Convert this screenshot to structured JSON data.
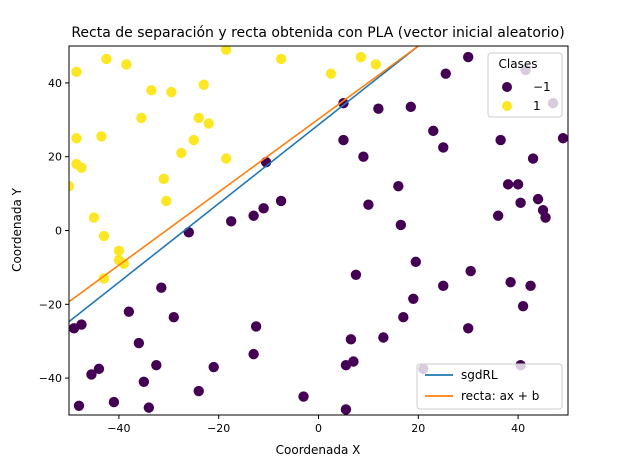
{
  "chart_data": {
    "type": "scatter",
    "title": "Recta de separación y recta obtenida con PLA (vector inicial aleatorio)",
    "xlabel": "Coordenada X",
    "ylabel": "Coordenada Y",
    "xlim": [
      -50,
      50
    ],
    "ylim": [
      -50,
      50
    ],
    "xticks": [
      -40,
      -20,
      0,
      20,
      40
    ],
    "yticks": [
      -40,
      -20,
      0,
      20,
      40
    ],
    "xtick_labels": [
      "−40",
      "−20",
      "0",
      "20",
      "40"
    ],
    "ytick_labels": [
      "−40",
      "−20",
      "0",
      "20",
      "40"
    ],
    "grid": false,
    "colors": {
      "class_neg": "#440154",
      "class_pos": "#fde725",
      "sgdRL": "#1f77b4",
      "recta": "#ff7f0e"
    },
    "class_legend": {
      "title": "Clases",
      "placement": "top-right",
      "entries": [
        {
          "label": "−1",
          "color": "#440154"
        },
        {
          "label": "1",
          "color": "#fde725"
        }
      ]
    },
    "line_legend": {
      "placement": "lower-right",
      "entries": [
        {
          "label": "sgdRL",
          "color": "#1f77b4"
        },
        {
          "label": "recta: ax + b",
          "color": "#ff7f0e"
        }
      ]
    },
    "lines": [
      {
        "name": "sgdRL",
        "x": [
          -50,
          20
        ],
        "y": [
          -24.7,
          50
        ]
      },
      {
        "name": "recta: ax + b",
        "x": [
          -50,
          20
        ],
        "y": [
          -19.3,
          50
        ]
      }
    ],
    "points": {
      "neg": [
        [
          -49,
          -26.5
        ],
        [
          -47.5,
          -25.5
        ],
        [
          -48,
          -47.5
        ],
        [
          -45.5,
          -39
        ],
        [
          -44,
          -37.5
        ],
        [
          -41,
          -46.5
        ],
        [
          -38,
          -22
        ],
        [
          -36,
          -30.5
        ],
        [
          -35,
          -41
        ],
        [
          -34,
          -48
        ],
        [
          -32.5,
          -36.5
        ],
        [
          -31.5,
          -15.5
        ],
        [
          -29,
          -23.5
        ],
        [
          -26,
          -0.5
        ],
        [
          -24,
          -43.5
        ],
        [
          -21,
          -37
        ],
        [
          -17.5,
          2.5
        ],
        [
          -13,
          -33.5
        ],
        [
          -12.5,
          -26
        ],
        [
          -13,
          4
        ],
        [
          -11,
          6
        ],
        [
          -10.5,
          18.5
        ],
        [
          -7.5,
          8
        ],
        [
          -3,
          -45
        ],
        [
          5,
          34.5
        ],
        [
          5,
          24.5
        ],
        [
          5.5,
          -36.5
        ],
        [
          5.5,
          -48.5
        ],
        [
          6.5,
          -29.5
        ],
        [
          7,
          -35.5
        ],
        [
          7.5,
          -12
        ],
        [
          9,
          20
        ],
        [
          10,
          7
        ],
        [
          12,
          33
        ],
        [
          13,
          -29
        ],
        [
          16,
          12
        ],
        [
          16.5,
          1.5
        ],
        [
          17,
          -23.5
        ],
        [
          18.5,
          33.5
        ],
        [
          19,
          -18.5
        ],
        [
          19.5,
          -8.5
        ],
        [
          21,
          -37.5
        ],
        [
          23,
          27
        ],
        [
          25,
          22.5
        ],
        [
          25,
          -15
        ],
        [
          25.5,
          42.5
        ],
        [
          30,
          47
        ],
        [
          30,
          -26.5
        ],
        [
          30.5,
          -11
        ],
        [
          36,
          4
        ],
        [
          36.5,
          24.5
        ],
        [
          38,
          12.5
        ],
        [
          38.5,
          -14
        ],
        [
          40,
          12.5
        ],
        [
          40.5,
          7.5
        ],
        [
          40.5,
          -36.5
        ],
        [
          41,
          -20.5
        ],
        [
          41.5,
          43.5
        ],
        [
          42.5,
          -15
        ],
        [
          43,
          19.5
        ],
        [
          44,
          8.5
        ],
        [
          45,
          5.5
        ],
        [
          45.5,
          3.5
        ],
        [
          47,
          34.5
        ],
        [
          49,
          25
        ]
      ],
      "pos": [
        [
          -50,
          12
        ],
        [
          -48.5,
          43
        ],
        [
          -48.5,
          25
        ],
        [
          -48.5,
          18
        ],
        [
          -47.5,
          17
        ],
        [
          -45,
          3.5
        ],
        [
          -43.5,
          25.5
        ],
        [
          -43,
          -13
        ],
        [
          -43,
          -1.5
        ],
        [
          -42.5,
          46.5
        ],
        [
          -40,
          -5.5
        ],
        [
          -40,
          -8
        ],
        [
          -39,
          -9
        ],
        [
          -38.5,
          45
        ],
        [
          -35.5,
          30.5
        ],
        [
          -33.5,
          38
        ],
        [
          -31,
          14
        ],
        [
          -30.5,
          8
        ],
        [
          -29.5,
          37.5
        ],
        [
          -27.5,
          21
        ],
        [
          -25,
          24.5
        ],
        [
          -24,
          30.5
        ],
        [
          -23,
          39.5
        ],
        [
          -22,
          29
        ],
        [
          -18.5,
          49
        ],
        [
          -18.5,
          19.5
        ],
        [
          -7.5,
          46.5
        ],
        [
          2.5,
          42.5
        ],
        [
          8.5,
          47
        ],
        [
          11.5,
          45
        ]
      ]
    }
  }
}
